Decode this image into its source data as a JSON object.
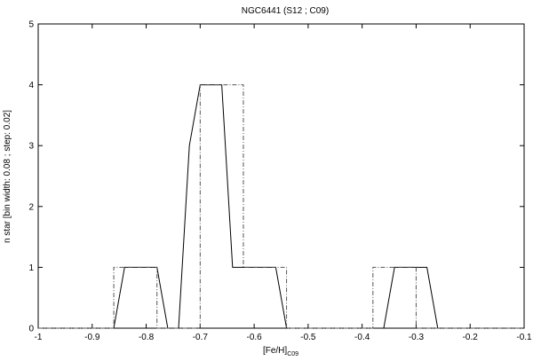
{
  "chart_data": {
    "type": "line",
    "title": "NGC6441 (S12 ; C09)",
    "xlabel_main": "[Fe/H]",
    "xlabel_sub": "C09",
    "ylabel": "n star [bin width: 0.08 ; step: 0.02]",
    "xlim": [
      -1,
      -0.1
    ],
    "ylim": [
      0,
      5
    ],
    "x_ticks": [
      -1,
      -0.9,
      -0.8,
      -0.7,
      -0.6,
      -0.5,
      -0.4,
      -0.3,
      -0.2,
      -0.1
    ],
    "x_tick_labels": [
      "-1",
      "-0.9",
      "-0.8",
      "-0.7",
      "-0.6",
      "-0.5",
      "-0.4",
      "-0.3",
      "-0.2",
      "-0.1"
    ],
    "y_ticks": [
      0,
      1,
      2,
      3,
      4,
      5
    ],
    "y_tick_labels": [
      "0",
      "1",
      "2",
      "3",
      "4",
      "5"
    ],
    "grid": false,
    "series": [
      {
        "style": "solid",
        "color": "#000000",
        "points": [
          [
            -1,
            0
          ],
          [
            -0.86,
            0
          ],
          [
            -0.84,
            1
          ],
          [
            -0.78,
            1
          ],
          [
            -0.76,
            0
          ],
          [
            -0.74,
            0
          ],
          [
            -0.72,
            3
          ],
          [
            -0.7,
            4
          ],
          [
            -0.66,
            4
          ],
          [
            -0.64,
            1
          ],
          [
            -0.56,
            1
          ],
          [
            -0.54,
            0
          ],
          [
            -0.36,
            0
          ],
          [
            -0.34,
            1
          ],
          [
            -0.3,
            1
          ],
          [
            -0.28,
            1
          ],
          [
            -0.26,
            0
          ],
          [
            -0.1,
            0
          ]
        ]
      },
      {
        "style": "dash-dot",
        "color": "#555555",
        "points": [
          [
            -1,
            0
          ],
          [
            -0.86,
            0
          ],
          [
            -0.86,
            1
          ],
          [
            -0.78,
            1
          ],
          [
            -0.78,
            0
          ],
          [
            -0.7,
            0
          ],
          [
            -0.7,
            4
          ],
          [
            -0.62,
            4
          ],
          [
            -0.62,
            1
          ],
          [
            -0.54,
            1
          ],
          [
            -0.54,
            0
          ],
          [
            -0.38,
            0
          ],
          [
            -0.38,
            1
          ],
          [
            -0.3,
            1
          ],
          [
            -0.3,
            0
          ],
          [
            -0.1,
            0
          ]
        ]
      }
    ]
  }
}
